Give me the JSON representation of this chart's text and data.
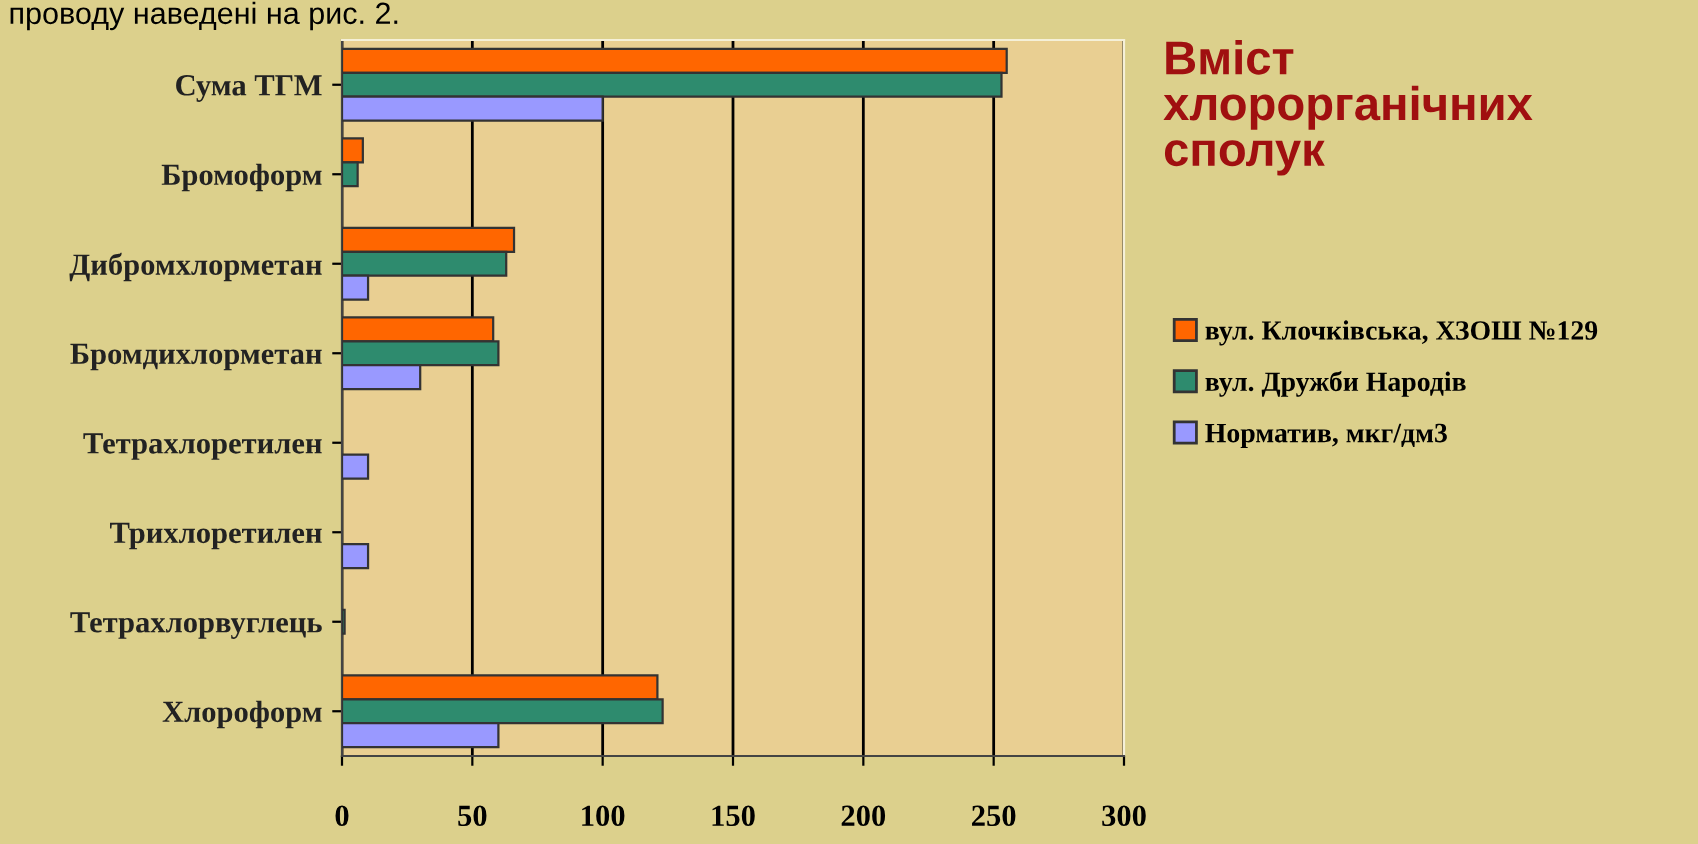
{
  "chart_data": {
    "type": "bar",
    "orientation": "horizontal",
    "title": "Вміст\nхлорорганічних\nсполук",
    "annotations": [
      "проводу наведені на рис. 2."
    ],
    "categories": [
      "Сума ТГМ",
      "Бромоформ",
      "Дибромхлорметан",
      "Бромдихлорметан",
      "Тетрахлоретилен",
      "Трихлоретилен",
      "Тетрахлорвуглець",
      "Хлороформ"
    ],
    "series": [
      {
        "name": "вул. Клочківська, ХЗОШ №129",
        "color": "#ff6600",
        "values": [
          255,
          8,
          66,
          58,
          null,
          null,
          null,
          121
        ]
      },
      {
        "name": "вул. Дружби Народів",
        "color": "#2e8b6e",
        "values": [
          253,
          6,
          63,
          60,
          null,
          null,
          1,
          123
        ]
      },
      {
        "name": "Норматив, мкг/дм3",
        "color": "#9999ff",
        "values": [
          100,
          null,
          10,
          30,
          10,
          10,
          null,
          60
        ]
      }
    ],
    "xlim": [
      0,
      300
    ],
    "xticks": [
      0,
      50,
      100,
      150,
      200,
      250,
      300
    ],
    "grid": "x",
    "legend": "right"
  }
}
